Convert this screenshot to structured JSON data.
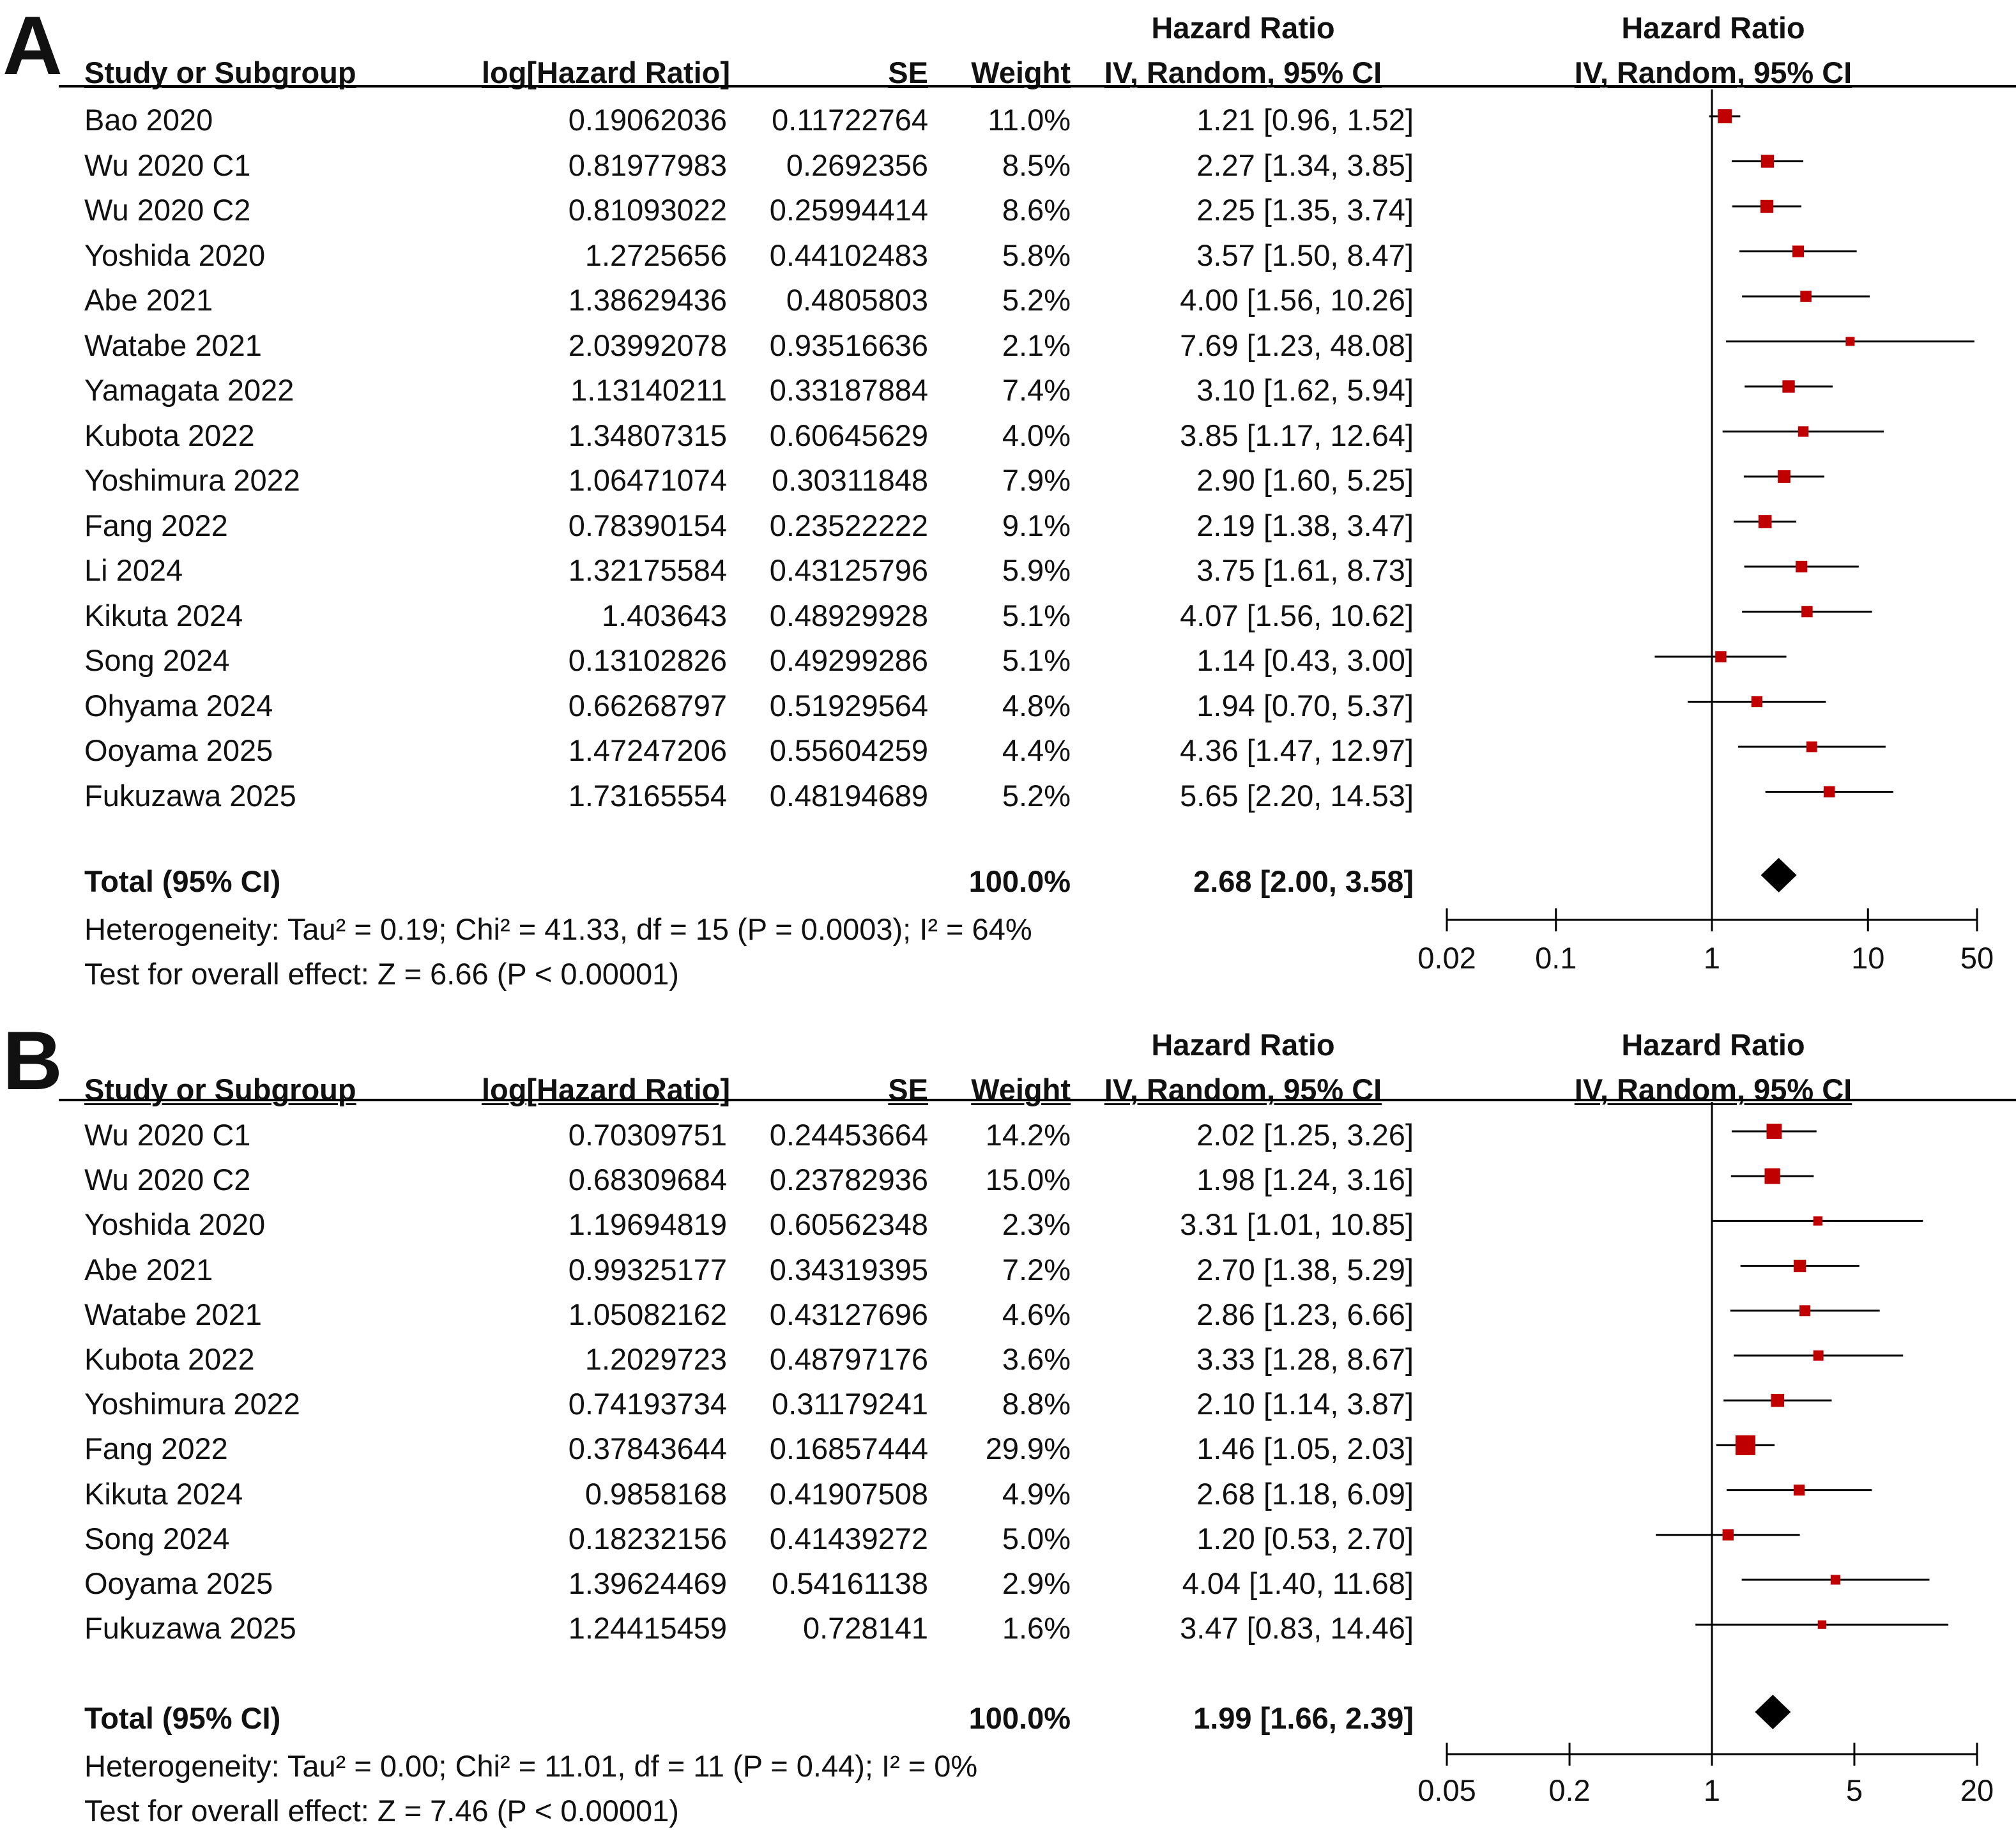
{
  "chart_data": [
    {
      "panel": "A",
      "type": "table",
      "headers": {
        "study": "Study or Subgroup",
        "loghr": "log[Hazard Ratio]",
        "se": "SE",
        "weight": "Weight",
        "hr_line1": "Hazard Ratio",
        "hr_line2": "IV, Random, 95% CI",
        "plot_line1": "Hazard Ratio",
        "plot_line2": "IV, Random, 95% CI"
      },
      "rows": [
        {
          "study": "Bao 2020",
          "loghr": "0.19062036",
          "se": "0.11722764",
          "weight": "11.0%",
          "ci": "1.21 [0.96, 1.52]",
          "hr": 1.21,
          "lo": 0.96,
          "hi": 1.52,
          "w": 11.0
        },
        {
          "study": "Wu 2020 C1",
          "loghr": "0.81977983",
          "se": "0.2692356",
          "weight": "8.5%",
          "ci": "2.27 [1.34, 3.85]",
          "hr": 2.27,
          "lo": 1.34,
          "hi": 3.85,
          "w": 8.5
        },
        {
          "study": "Wu 2020 C2",
          "loghr": "0.81093022",
          "se": "0.25994414",
          "weight": "8.6%",
          "ci": "2.25 [1.35, 3.74]",
          "hr": 2.25,
          "lo": 1.35,
          "hi": 3.74,
          "w": 8.6
        },
        {
          "study": "Yoshida 2020",
          "loghr": "1.2725656",
          "se": "0.44102483",
          "weight": "5.8%",
          "ci": "3.57 [1.50, 8.47]",
          "hr": 3.57,
          "lo": 1.5,
          "hi": 8.47,
          "w": 5.8
        },
        {
          "study": "Abe 2021",
          "loghr": "1.38629436",
          "se": "0.4805803",
          "weight": "5.2%",
          "ci": "4.00 [1.56, 10.26]",
          "hr": 4.0,
          "lo": 1.56,
          "hi": 10.26,
          "w": 5.2
        },
        {
          "study": "Watabe 2021",
          "loghr": "2.03992078",
          "se": "0.93516636",
          "weight": "2.1%",
          "ci": "7.69 [1.23, 48.08]",
          "hr": 7.69,
          "lo": 1.23,
          "hi": 48.08,
          "w": 2.1
        },
        {
          "study": "Yamagata 2022",
          "loghr": "1.13140211",
          "se": "0.33187884",
          "weight": "7.4%",
          "ci": "3.10 [1.62, 5.94]",
          "hr": 3.1,
          "lo": 1.62,
          "hi": 5.94,
          "w": 7.4
        },
        {
          "study": "Kubota 2022",
          "loghr": "1.34807315",
          "se": "0.60645629",
          "weight": "4.0%",
          "ci": "3.85 [1.17, 12.64]",
          "hr": 3.85,
          "lo": 1.17,
          "hi": 12.64,
          "w": 4.0
        },
        {
          "study": "Yoshimura 2022",
          "loghr": "1.06471074",
          "se": "0.30311848",
          "weight": "7.9%",
          "ci": "2.90 [1.60, 5.25]",
          "hr": 2.9,
          "lo": 1.6,
          "hi": 5.25,
          "w": 7.9
        },
        {
          "study": "Fang 2022",
          "loghr": "0.78390154",
          "se": "0.23522222",
          "weight": "9.1%",
          "ci": "2.19 [1.38, 3.47]",
          "hr": 2.19,
          "lo": 1.38,
          "hi": 3.47,
          "w": 9.1
        },
        {
          "study": "Li 2024",
          "loghr": "1.32175584",
          "se": "0.43125796",
          "weight": "5.9%",
          "ci": "3.75 [1.61, 8.73]",
          "hr": 3.75,
          "lo": 1.61,
          "hi": 8.73,
          "w": 5.9
        },
        {
          "study": "Kikuta 2024",
          "loghr": "1.403643",
          "se": "0.48929928",
          "weight": "5.1%",
          "ci": "4.07 [1.56, 10.62]",
          "hr": 4.07,
          "lo": 1.56,
          "hi": 10.62,
          "w": 5.1
        },
        {
          "study": "Song 2024",
          "loghr": "0.13102826",
          "se": "0.49299286",
          "weight": "5.1%",
          "ci": "1.14 [0.43, 3.00]",
          "hr": 1.14,
          "lo": 0.43,
          "hi": 3.0,
          "w": 5.1
        },
        {
          "study": "Ohyama 2024",
          "loghr": "0.66268797",
          "se": "0.51929564",
          "weight": "4.8%",
          "ci": "1.94 [0.70, 5.37]",
          "hr": 1.94,
          "lo": 0.7,
          "hi": 5.37,
          "w": 4.8
        },
        {
          "study": "Ooyama 2025",
          "loghr": "1.47247206",
          "se": "0.55604259",
          "weight": "4.4%",
          "ci": "4.36 [1.47, 12.97]",
          "hr": 4.36,
          "lo": 1.47,
          "hi": 12.97,
          "w": 4.4
        },
        {
          "study": "Fukuzawa 2025",
          "loghr": "1.73165554",
          "se": "0.48194689",
          "weight": "5.2%",
          "ci": "5.65 [2.20, 14.53]",
          "hr": 5.65,
          "lo": 2.2,
          "hi": 14.53,
          "w": 5.2
        }
      ],
      "total": {
        "label": "Total (95% CI)",
        "weight": "100.0%",
        "ci": "2.68 [2.00, 3.58]",
        "hr": 2.68,
        "lo": 2.0,
        "hi": 3.58
      },
      "heterogeneity": "Heterogeneity: Tau² = 0.19; Chi² = 41.33, df = 15 (P = 0.0003); I² = 64%",
      "overall_effect": "Test for overall effect: Z = 6.66 (P < 0.00001)",
      "xscale": "log",
      "xlim": [
        0.02,
        50
      ],
      "ticks": [
        0.02,
        0.1,
        1,
        10,
        50
      ],
      "tick_labels": [
        "0.02",
        "0.1",
        "1",
        "10",
        "50"
      ],
      "marker_color": "#c00000"
    },
    {
      "panel": "B",
      "type": "table",
      "headers": {
        "study": "Study or Subgroup",
        "loghr": "log[Hazard Ratio]",
        "se": "SE",
        "weight": "Weight",
        "hr_line1": "Hazard Ratio",
        "hr_line2": "IV, Random, 95% CI",
        "plot_line1": "Hazard Ratio",
        "plot_line2": "IV, Random, 95% CI"
      },
      "rows": [
        {
          "study": "Wu 2020 C1",
          "loghr": "0.70309751",
          "se": "0.24453664",
          "weight": "14.2%",
          "ci": "2.02 [1.25, 3.26]",
          "hr": 2.02,
          "lo": 1.25,
          "hi": 3.26,
          "w": 14.2
        },
        {
          "study": "Wu 2020 C2",
          "loghr": "0.68309684",
          "se": "0.23782936",
          "weight": "15.0%",
          "ci": "1.98 [1.24, 3.16]",
          "hr": 1.98,
          "lo": 1.24,
          "hi": 3.16,
          "w": 15.0
        },
        {
          "study": "Yoshida 2020",
          "loghr": "1.19694819",
          "se": "0.60562348",
          "weight": "2.3%",
          "ci": "3.31 [1.01, 10.85]",
          "hr": 3.31,
          "lo": 1.01,
          "hi": 10.85,
          "w": 2.3
        },
        {
          "study": "Abe 2021",
          "loghr": "0.99325177",
          "se": "0.34319395",
          "weight": "7.2%",
          "ci": "2.70 [1.38, 5.29]",
          "hr": 2.7,
          "lo": 1.38,
          "hi": 5.29,
          "w": 7.2
        },
        {
          "study": "Watabe 2021",
          "loghr": "1.05082162",
          "se": "0.43127696",
          "weight": "4.6%",
          "ci": "2.86 [1.23, 6.66]",
          "hr": 2.86,
          "lo": 1.23,
          "hi": 6.66,
          "w": 4.6
        },
        {
          "study": "Kubota 2022",
          "loghr": "1.2029723",
          "se": "0.48797176",
          "weight": "3.6%",
          "ci": "3.33 [1.28, 8.67]",
          "hr": 3.33,
          "lo": 1.28,
          "hi": 8.67,
          "w": 3.6
        },
        {
          "study": "Yoshimura 2022",
          "loghr": "0.74193734",
          "se": "0.31179241",
          "weight": "8.8%",
          "ci": "2.10 [1.14, 3.87]",
          "hr": 2.1,
          "lo": 1.14,
          "hi": 3.87,
          "w": 8.8
        },
        {
          "study": "Fang 2022",
          "loghr": "0.37843644",
          "se": "0.16857444",
          "weight": "29.9%",
          "ci": "1.46 [1.05, 2.03]",
          "hr": 1.46,
          "lo": 1.05,
          "hi": 2.03,
          "w": 29.9
        },
        {
          "study": "Kikuta 2024",
          "loghr": "0.9858168",
          "se": "0.41907508",
          "weight": "4.9%",
          "ci": "2.68 [1.18, 6.09]",
          "hr": 2.68,
          "lo": 1.18,
          "hi": 6.09,
          "w": 4.9
        },
        {
          "study": "Song 2024",
          "loghr": "0.18232156",
          "se": "0.41439272",
          "weight": "5.0%",
          "ci": "1.20 [0.53, 2.70]",
          "hr": 1.2,
          "lo": 0.53,
          "hi": 2.7,
          "w": 5.0
        },
        {
          "study": "Ooyama 2025",
          "loghr": "1.39624469",
          "se": "0.54161138",
          "weight": "2.9%",
          "ci": "4.04 [1.40, 11.68]",
          "hr": 4.04,
          "lo": 1.4,
          "hi": 11.68,
          "w": 2.9
        },
        {
          "study": "Fukuzawa 2025",
          "loghr": "1.24415459",
          "se": "0.728141",
          "weight": "1.6%",
          "ci": "3.47 [0.83, 14.46]",
          "hr": 3.47,
          "lo": 0.83,
          "hi": 14.46,
          "w": 1.6
        }
      ],
      "total": {
        "label": "Total (95% CI)",
        "weight": "100.0%",
        "ci": "1.99 [1.66, 2.39]",
        "hr": 1.99,
        "lo": 1.66,
        "hi": 2.39
      },
      "heterogeneity": "Heterogeneity: Tau² = 0.00; Chi² = 11.01, df = 11 (P = 0.44); I² = 0%",
      "overall_effect": "Test for overall effect: Z = 7.46 (P < 0.00001)",
      "xscale": "log",
      "xlim": [
        0.05,
        20
      ],
      "ticks": [
        0.05,
        0.2,
        1,
        5,
        20
      ],
      "tick_labels": [
        "0.05",
        "0.2",
        "1",
        "5",
        "20"
      ],
      "marker_color": "#c00000"
    }
  ]
}
